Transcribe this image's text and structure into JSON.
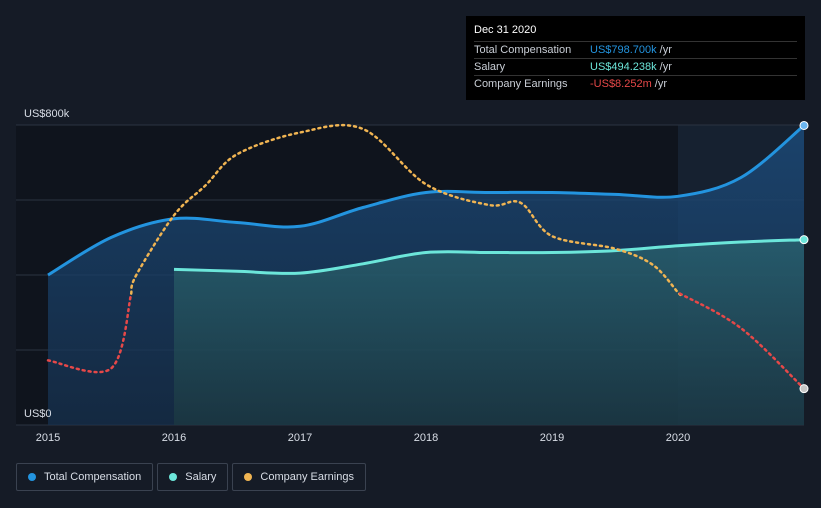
{
  "tooltip": {
    "date": "Dec 31 2020",
    "rows": [
      {
        "label": "Total Compensation",
        "value": "US$798.700k",
        "unit": "/yr"
      },
      {
        "label": "Salary",
        "value": "US$494.238k",
        "unit": "/yr"
      },
      {
        "label": "Company Earnings",
        "value": "-US$8.252m",
        "unit": "/yr"
      }
    ]
  },
  "legend": [
    {
      "label": "Total Compensation",
      "color": "#2394df"
    },
    {
      "label": "Salary",
      "color": "#6ce6da"
    },
    {
      "label": "Company Earnings",
      "color": "#f0b452"
    }
  ],
  "chart_data": {
    "type": "line",
    "y_tick_labels": [
      "US$800k",
      "US$0"
    ],
    "ylim": [
      0,
      800000
    ],
    "x_tick_labels": [
      "2015",
      "2016",
      "2017",
      "2018",
      "2019",
      "2020"
    ],
    "grid": true,
    "series": [
      {
        "name": "Total Compensation",
        "color": "#2394df",
        "x": [
          2015.0,
          2015.5,
          2016.0,
          2016.5,
          2017.0,
          2017.5,
          2018.0,
          2018.5,
          2019.0,
          2019.5,
          2020.0,
          2020.5,
          2021.0
        ],
        "values": [
          400000,
          500000,
          550000,
          540000,
          530000,
          580000,
          620000,
          620000,
          620000,
          615000,
          610000,
          660000,
          798700
        ]
      },
      {
        "name": "Salary",
        "color": "#6ce6da",
        "x": [
          2016.0,
          2016.5,
          2017.0,
          2017.5,
          2018.0,
          2018.5,
          2019.0,
          2019.5,
          2020.0,
          2020.5,
          2021.0
        ],
        "values": [
          415000,
          410000,
          405000,
          430000,
          460000,
          460000,
          460000,
          465000,
          478000,
          488000,
          494238
        ]
      },
      {
        "name": "Company Earnings",
        "color": "#f0b452",
        "negative_color": "#e64848",
        "x": [
          2015.0,
          2015.5,
          2015.7,
          2016.0,
          2016.25,
          2016.5,
          2017.0,
          2017.5,
          2018.0,
          2018.5,
          2018.75,
          2019.0,
          2019.5,
          2019.8,
          2020.0,
          2020.5,
          2021.0
        ],
        "values": [
          -5.8,
          -6.5,
          1.6,
          6.8,
          9.4,
          12.1,
          14.0,
          14.3,
          9.5,
          7.7,
          7.9,
          5.0,
          3.9,
          2.5,
          0.1,
          -3.0,
          -8.252
        ],
        "note": "scaled to its own hidden axis"
      }
    ]
  }
}
